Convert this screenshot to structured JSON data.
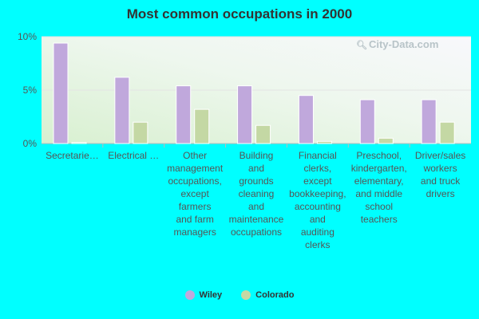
{
  "chart_data": {
    "type": "bar",
    "title": "Most common occupations in 2000",
    "categories": [
      [
        "Secretarie…"
      ],
      [
        "Electrical …"
      ],
      [
        "Other",
        "management",
        "occupations,",
        "except",
        "farmers",
        "and farm",
        "managers"
      ],
      [
        "Building",
        "and",
        "grounds",
        "cleaning",
        "and",
        "maintenance",
        "occupations"
      ],
      [
        "Financial",
        "clerks,",
        "except",
        "bookkeeping,",
        "accounting",
        "and",
        "auditing",
        "clerks"
      ],
      [
        "Preschool,",
        "kindergarten,",
        "elementary,",
        "and middle",
        "school",
        "teachers"
      ],
      [
        "Driver/sales",
        "workers",
        "and truck",
        "drivers"
      ]
    ],
    "series": [
      {
        "name": "Wiley",
        "color": "#c0a8dc",
        "values": [
          9.4,
          6.2,
          5.4,
          5.4,
          4.5,
          4.1,
          4.1
        ]
      },
      {
        "name": "Colorado",
        "color": "#c4d8a4",
        "values": [
          0.1,
          2.0,
          3.2,
          1.7,
          0.2,
          0.5,
          2.0
        ]
      }
    ],
    "ylim": [
      0,
      10
    ],
    "yticks": [
      {
        "value": 0,
        "label": "0%"
      },
      {
        "value": 5,
        "label": "5%"
      },
      {
        "value": 10,
        "label": "10%"
      }
    ],
    "legend_position": "bottom-center",
    "grid": true
  },
  "watermark": {
    "text": "City-Data.com",
    "icon": "magnifier-icon"
  }
}
